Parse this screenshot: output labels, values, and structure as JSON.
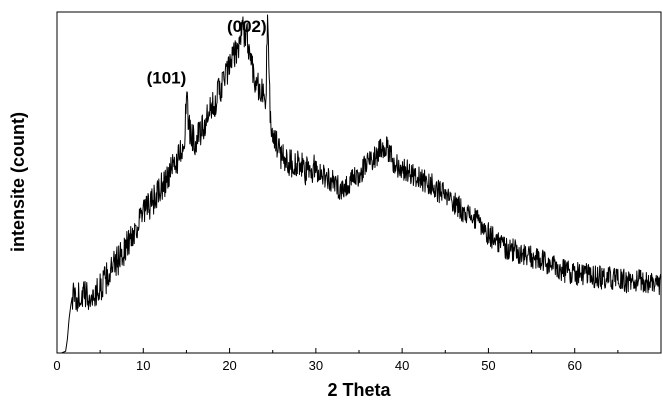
{
  "chart_data": {
    "type": "line",
    "xlabel": "2 Theta",
    "ylabel": "intensite (count)",
    "xlim": [
      0,
      70
    ],
    "ylim": [
      0,
      100
    ],
    "x_ticks": [
      "0",
      "10",
      "20",
      "30",
      "40",
      "50",
      "60"
    ],
    "y_tick_labels_shown": false,
    "grid": false,
    "annotations": [
      {
        "text": "(101)",
        "x": 15.0
      },
      {
        "text": "(002)",
        "x": 22.0
      }
    ],
    "series": [
      {
        "points": [
          [
            0.5,
            0
          ],
          [
            1.0,
            0.5
          ],
          [
            1.2,
            4
          ],
          [
            1.4,
            10
          ],
          [
            1.6,
            14
          ],
          [
            1.8,
            17
          ],
          [
            2.0,
            16
          ],
          [
            3,
            17
          ],
          [
            4,
            16
          ],
          [
            5,
            19
          ],
          [
            6,
            23
          ],
          [
            7,
            27
          ],
          [
            8,
            31
          ],
          [
            9,
            36
          ],
          [
            10,
            41
          ],
          [
            11,
            44
          ],
          [
            12,
            48
          ],
          [
            13,
            52
          ],
          [
            14,
            57
          ],
          [
            14.8,
            63
          ],
          [
            15.0,
            75
          ],
          [
            15.3,
            66
          ],
          [
            16,
            62
          ],
          [
            17,
            66
          ],
          [
            18,
            72
          ],
          [
            19,
            78
          ],
          [
            20,
            84
          ],
          [
            21,
            90
          ],
          [
            21.5,
            95
          ],
          [
            22,
            93
          ],
          [
            22.5,
            86
          ],
          [
            23,
            80
          ],
          [
            24.2,
            74
          ],
          [
            24.4,
            98
          ],
          [
            24.7,
            70
          ],
          [
            25,
            63
          ],
          [
            26,
            58
          ],
          [
            27,
            56
          ],
          [
            28,
            55
          ],
          [
            29,
            53
          ],
          [
            30,
            54
          ],
          [
            31,
            52
          ],
          [
            32,
            50
          ],
          [
            33,
            48
          ],
          [
            34,
            50
          ],
          [
            35,
            52
          ],
          [
            36,
            56
          ],
          [
            37,
            58
          ],
          [
            37.5,
            60
          ],
          [
            38,
            61
          ],
          [
            39,
            56
          ],
          [
            40,
            54
          ],
          [
            41,
            53
          ],
          [
            42,
            51
          ],
          [
            43,
            50
          ],
          [
            44,
            48
          ],
          [
            45,
            46
          ],
          [
            46,
            44
          ],
          [
            47,
            42
          ],
          [
            48,
            40
          ],
          [
            49,
            38
          ],
          [
            50,
            35
          ],
          [
            51,
            33
          ],
          [
            52,
            31
          ],
          [
            53,
            30
          ],
          [
            54,
            29
          ],
          [
            55,
            28
          ],
          [
            56,
            27
          ],
          [
            57,
            26
          ],
          [
            58,
            25
          ],
          [
            59,
            24
          ],
          [
            60,
            23.5
          ],
          [
            61,
            23
          ],
          [
            62,
            22.5
          ],
          [
            63,
            22
          ],
          [
            64,
            22
          ],
          [
            65,
            21.5
          ],
          [
            66,
            21
          ],
          [
            67,
            21
          ],
          [
            68,
            21
          ],
          [
            69,
            20.5
          ],
          [
            70,
            20.5
          ]
        ]
      }
    ]
  }
}
